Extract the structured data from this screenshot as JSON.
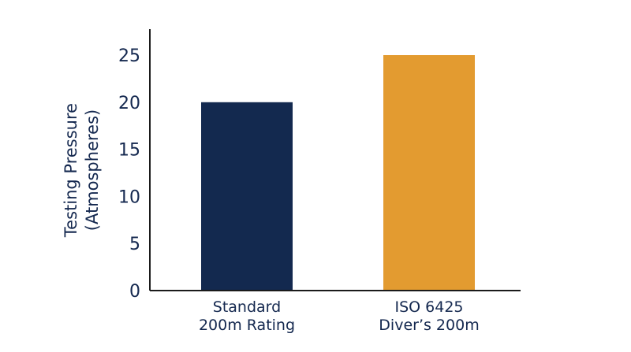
{
  "chart_data": {
    "type": "bar",
    "title": "",
    "xlabel": "",
    "ylabel_lines": [
      "Testing Pressure",
      "(Atmospheres)"
    ],
    "ylim": [
      0,
      28
    ],
    "yticks": [
      0,
      5,
      10,
      15,
      20,
      25
    ],
    "grid": false,
    "categories": [
      {
        "lines": [
          "Standard",
          "200m Rating"
        ]
      },
      {
        "lines": [
          "ISO 6425",
          "Diver’s 200m"
        ]
      }
    ],
    "values": [
      20,
      25
    ],
    "colors": [
      "#13294f",
      "#e39b30"
    ]
  }
}
